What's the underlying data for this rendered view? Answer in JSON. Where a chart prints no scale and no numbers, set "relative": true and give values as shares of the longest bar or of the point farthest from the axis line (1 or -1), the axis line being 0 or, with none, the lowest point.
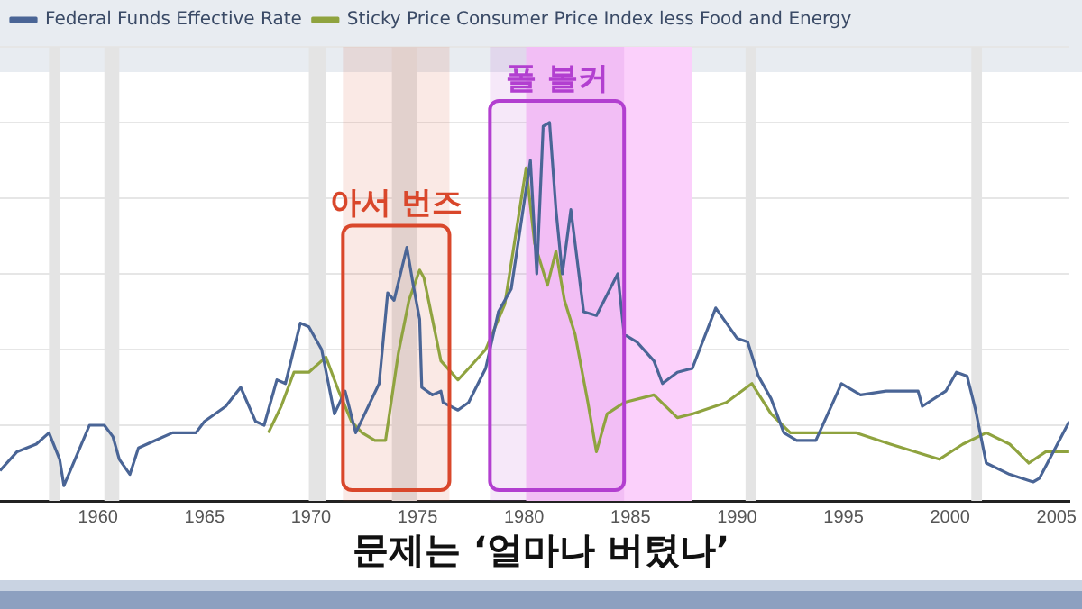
{
  "chart_data": {
    "type": "line",
    "relative": true,
    "legend": "top left",
    "grid": "y",
    "xlim": [
      1955.4,
      2005.6
    ],
    "xticks": [
      1960,
      1965,
      1970,
      1975,
      1980,
      1985,
      1990,
      1995,
      2000,
      2005
    ],
    "annotations": [
      "문제는 ‘얼마나 버텼나’"
    ],
    "bands": [
      {
        "axis": "x",
        "from": 1957.7,
        "to": 1958.2,
        "color": "#e4e4e4"
      },
      {
        "axis": "x",
        "from": 1960.3,
        "to": 1961.0,
        "color": "#e4e4e4"
      },
      {
        "axis": "x",
        "from": 1969.9,
        "to": 1970.7,
        "color": "#e4e4e4"
      },
      {
        "axis": "x",
        "from": 1973.8,
        "to": 1975.0,
        "color": "#e4e4e4"
      },
      {
        "axis": "x",
        "from": 1990.4,
        "to": 1990.9,
        "color": "#e4e4e4"
      },
      {
        "axis": "x",
        "from": 2001.0,
        "to": 2001.5,
        "color": "#e4e4e4"
      },
      {
        "axis": "x",
        "from": 1980.1,
        "to": 1987.9,
        "color": "#fbd0fb"
      },
      {
        "axis": "x",
        "from": 1971.5,
        "to": 1976.5,
        "color": "#d9472b",
        "label": "아서 번즈"
      },
      {
        "axis": "x",
        "from": 1978.4,
        "to": 1984.7,
        "color": "#b23fd0",
        "label": "폴 볼커"
      }
    ],
    "series": [
      {
        "name": "Federal Funds Effective Rate",
        "color": "#4a6596",
        "x": [
          1955.4,
          1956.2,
          1957.1,
          1957.7,
          1958.2,
          1958.4,
          1958.7,
          1959.6,
          1960.3,
          1960.7,
          1961.0,
          1961.5,
          1961.9,
          1962.7,
          1963.5,
          1964.6,
          1965.0,
          1966.0,
          1966.7,
          1967.4,
          1967.8,
          1968.4,
          1968.8,
          1969.5,
          1969.9,
          1970.5,
          1971.1,
          1971.6,
          1972.1,
          1973.2,
          1973.6,
          1973.9,
          1974.5,
          1974.8,
          1975.1,
          1975.2,
          1975.7,
          1976.1,
          1976.2,
          1976.9,
          1977.4,
          1978.2,
          1978.8,
          1979.4,
          1980.3,
          1980.6,
          1980.9,
          1981.2,
          1981.5,
          1981.8,
          1982.2,
          1982.8,
          1983.4,
          1984.4,
          1984.7,
          1985.3,
          1986.1,
          1986.5,
          1987.2,
          1987.9,
          1989.0,
          1990.0,
          1990.5,
          1991.0,
          1991.6,
          1992.2,
          1992.8,
          1993.7,
          1994.9,
          1995.8,
          1997.0,
          1998.5,
          1998.7,
          1999.8,
          2000.3,
          2000.8,
          2001.2,
          2001.7,
          2002.8,
          2003.9,
          2004.2,
          2005.6
        ],
        "values": [
          0.08,
          0.13,
          0.15,
          0.18,
          0.11,
          0.04,
          0.08,
          0.2,
          0.2,
          0.17,
          0.11,
          0.07,
          0.14,
          0.16,
          0.18,
          0.18,
          0.21,
          0.25,
          0.3,
          0.21,
          0.2,
          0.32,
          0.31,
          0.47,
          0.46,
          0.4,
          0.23,
          0.29,
          0.18,
          0.31,
          0.55,
          0.53,
          0.67,
          0.57,
          0.48,
          0.3,
          0.28,
          0.29,
          0.26,
          0.24,
          0.26,
          0.35,
          0.5,
          0.56,
          0.9,
          0.6,
          0.99,
          1,
          0.77,
          0.6,
          0.77,
          0.5,
          0.49,
          0.6,
          0.44,
          0.42,
          0.37,
          0.31,
          0.34,
          0.35,
          0.51,
          0.43,
          0.42,
          0.33,
          0.27,
          0.18,
          0.16,
          0.16,
          0.31,
          0.28,
          0.29,
          0.29,
          0.25,
          0.29,
          0.34,
          0.33,
          0.24,
          0.1,
          0.07,
          0.05,
          0.06,
          0.21
        ]
      },
      {
        "name": "Sticky Price Consumer Price Index less Food and Energy",
        "color": "#8fa33f",
        "x": [
          1968.0,
          1968.6,
          1969.2,
          1969.9,
          1970.7,
          1971.3,
          1971.9,
          1972.4,
          1973.0,
          1973.5,
          1974.1,
          1974.6,
          1975.1,
          1975.3,
          1975.7,
          1976.1,
          1976.9,
          1977.4,
          1978.2,
          1979.1,
          1980.1,
          1980.5,
          1981.1,
          1981.5,
          1981.9,
          1982.4,
          1983.0,
          1983.4,
          1983.9,
          1984.7,
          1986.1,
          1987.2,
          1987.9,
          1989.5,
          1990.7,
          1991.6,
          1992.5,
          1993.6,
          1995.6,
          1997.2,
          1999.5,
          2000.6,
          2001.7,
          2002.8,
          2003.7,
          2004.5,
          2005.6
        ],
        "values": [
          0.18,
          0.25,
          0.34,
          0.34,
          0.38,
          0.29,
          0.21,
          0.18,
          0.16,
          0.16,
          0.39,
          0.53,
          0.61,
          0.59,
          0.48,
          0.37,
          0.32,
          0.35,
          0.4,
          0.52,
          0.88,
          0.68,
          0.57,
          0.66,
          0.53,
          0.44,
          0.26,
          0.13,
          0.23,
          0.26,
          0.28,
          0.22,
          0.23,
          0.26,
          0.31,
          0.23,
          0.18,
          0.18,
          0.18,
          0.15,
          0.11,
          0.15,
          0.18,
          0.15,
          0.1,
          0.13,
          0.13
        ]
      }
    ]
  }
}
